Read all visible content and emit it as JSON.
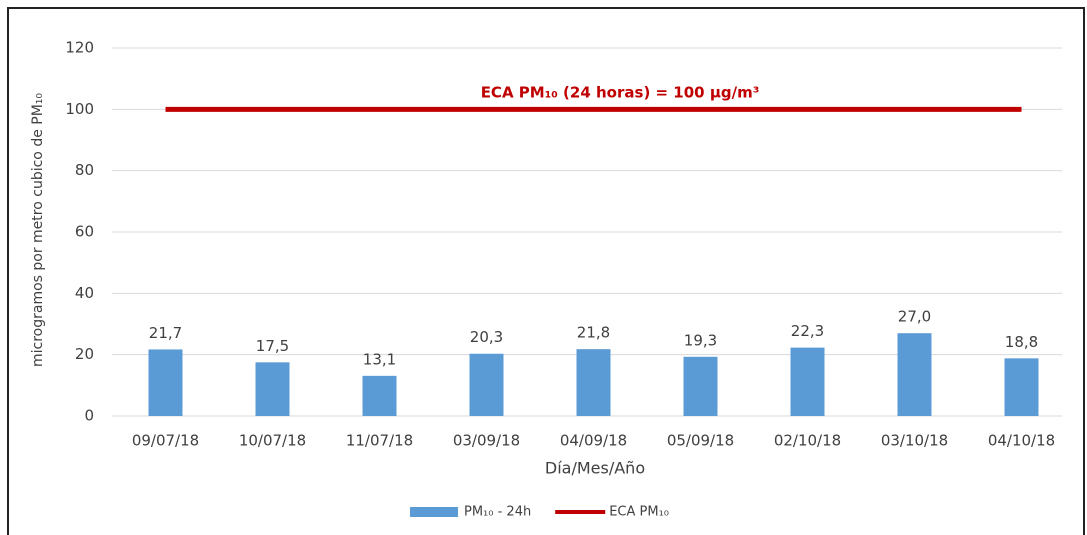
{
  "chart_data": {
    "type": "bar",
    "categories": [
      "09/07/18",
      "10/07/18",
      "11/07/18",
      "03/09/18",
      "04/09/18",
      "05/09/18",
      "02/10/18",
      "03/10/18",
      "04/10/18"
    ],
    "series": [
      {
        "name": "PM₁₀ - 24h",
        "type": "bar",
        "color": "#5b9bd5",
        "values": [
          21.7,
          17.5,
          13.1,
          20.3,
          21.8,
          19.3,
          22.3,
          27.0,
          18.8
        ],
        "value_labels": [
          "21,7",
          "17,5",
          "13,1",
          "20,3",
          "21,8",
          "19,3",
          "22,3",
          "27,0",
          "18,8"
        ]
      },
      {
        "name": "ECA PM₁₀",
        "type": "line",
        "color": "#c00000",
        "values": [
          100,
          100,
          100,
          100,
          100,
          100,
          100,
          100,
          100
        ]
      }
    ],
    "annotation": "ECA PM₁₀ (24 horas) = 100 µg/m³",
    "ylabel": "microgramos por metro cubico de PM₁₀",
    "xlabel": "Día/Mes/Año",
    "ylim": [
      0,
      120
    ],
    "yticks": [
      0,
      20,
      40,
      60,
      80,
      100,
      120
    ],
    "grid": true,
    "legend": "bottom"
  }
}
